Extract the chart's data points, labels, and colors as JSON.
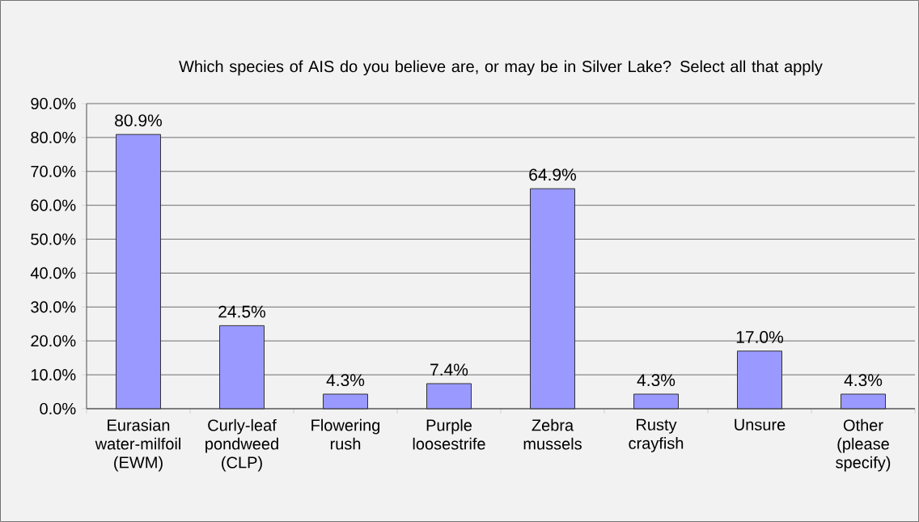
{
  "chart_data": {
    "type": "bar",
    "title": "Which species of AIS do you believe are, or may be in Silver Lake?  Select all that apply",
    "categories": [
      "Eurasian water-milfoil (EWM)",
      "Curly-leaf pondweed (CLP)",
      "Flowering rush",
      "Purple loosestrife",
      "Zebra mussels",
      "Rusty crayfish",
      "Unsure",
      "Other (please specify)"
    ],
    "values": [
      80.9,
      24.5,
      4.3,
      7.4,
      64.9,
      4.3,
      17.0,
      4.3
    ],
    "value_labels": [
      "80.9%",
      "24.5%",
      "4.3%",
      "7.4%",
      "64.9%",
      "4.3%",
      "17.0%",
      "4.3%"
    ],
    "color": "#9999ff",
    "ylim": [
      0,
      90
    ],
    "yticks": [
      {
        "value": 0,
        "label": "0.0%"
      },
      {
        "value": 10,
        "label": "10.0%"
      },
      {
        "value": 20,
        "label": "20.0%"
      },
      {
        "value": 30,
        "label": "30.0%"
      },
      {
        "value": 40,
        "label": "40.0%"
      },
      {
        "value": 50,
        "label": "50.0%"
      },
      {
        "value": 60,
        "label": "60.0%"
      },
      {
        "value": 70,
        "label": "70.0%"
      },
      {
        "value": 80,
        "label": "80.0%"
      },
      {
        "value": 90,
        "label": "90.0%"
      }
    ],
    "grid": "y"
  }
}
